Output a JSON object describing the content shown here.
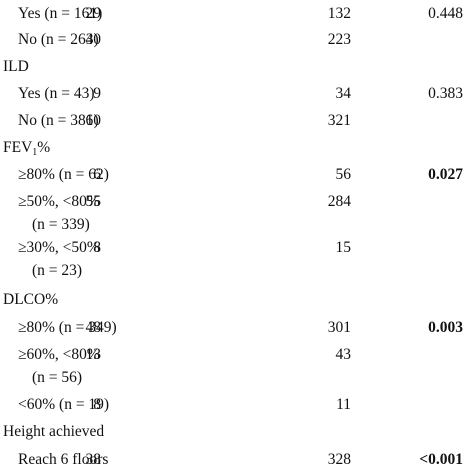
{
  "table": {
    "rows": [
      {
        "label": [
          "Yes (n = 161)"
        ],
        "a": 29,
        "b": 132,
        "p": 0.448
      },
      {
        "label": [
          "No (n = 263)"
        ],
        "a": 40,
        "b": 223
      },
      {
        "header": "ILD"
      },
      {
        "label": [
          "Yes (n = 43)"
        ],
        "a": 9,
        "b": 34,
        "p": 0.383
      },
      {
        "label": [
          "No (n = 381)"
        ],
        "a": 60,
        "b": 321
      },
      {
        "header": "FEV",
        "header_sub": "1",
        "header_suffix": "%"
      },
      {
        "label": [
          "≥80% (n = 62)"
        ],
        "a": 6,
        "b": 56,
        "p": 0.027,
        "p_bold": true
      },
      {
        "label": [
          "≥50%, <80%",
          "(n = 339)"
        ],
        "a": 55,
        "b": 284
      },
      {
        "label": [
          "≥30%, <50%",
          "(n = 23)"
        ],
        "a": 8,
        "b": 15
      },
      {
        "header": "DLCO%"
      },
      {
        "label": [
          "≥80% (n = 349)"
        ],
        "a": 48,
        "b": 301,
        "p": 0.003,
        "p_bold": true
      },
      {
        "label": [
          "≥60%, <80%",
          "(n = 56)"
        ],
        "a": 13,
        "b": 43
      },
      {
        "label": [
          "<60% (n = 19)"
        ],
        "a": 8,
        "b": 11
      },
      {
        "header": "Height achieved"
      },
      {
        "label": [
          "Reach 6 floors"
        ],
        "a": 38,
        "b": 328,
        "p": "<0.001",
        "p_bold": true
      }
    ]
  }
}
